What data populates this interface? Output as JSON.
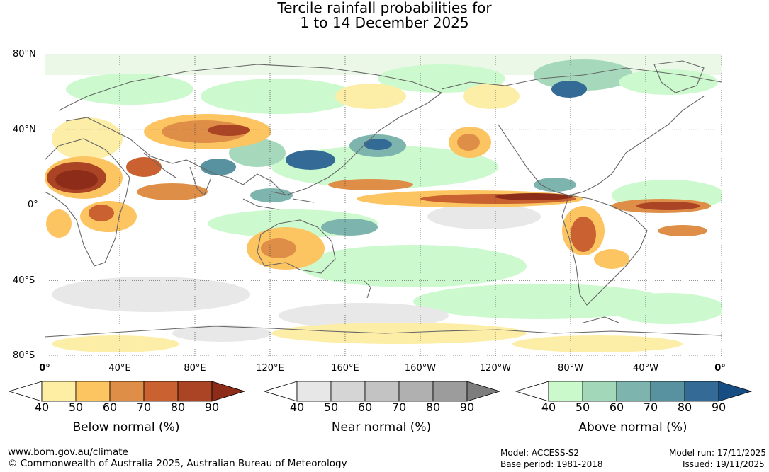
{
  "title": {
    "line1": "Tercile rainfall probabilities for",
    "line2": "1 to 14 December 2025"
  },
  "map": {
    "lat_labels": [
      "80°N",
      "40°N",
      "0°",
      "40°S",
      "80°S"
    ],
    "lon_labels": [
      "0°",
      "40°E",
      "80°E",
      "120°E",
      "160°E",
      "160°W",
      "120°W",
      "80°W",
      "40°W",
      "0°"
    ]
  },
  "legends": [
    {
      "name": "below-normal",
      "label": "Below normal (%)",
      "ticks": [
        "40",
        "50",
        "60",
        "70",
        "80",
        "90"
      ],
      "colors": [
        "#ffffff",
        "#fdeea3",
        "#fdc462",
        "#df8e47",
        "#c96230",
        "#ab4424",
        "#8d2d19"
      ]
    },
    {
      "name": "near-normal",
      "label": "Near normal (%)",
      "ticks": [
        "40",
        "50",
        "60",
        "70",
        "80",
        "90"
      ],
      "colors": [
        "#ffffff",
        "#e7e7e7",
        "#d5d5d5",
        "#c3c3c3",
        "#b0b0b0",
        "#9c9c9c",
        "#7d7d7d"
      ]
    },
    {
      "name": "above-normal",
      "label": "Above normal (%)",
      "ticks": [
        "40",
        "50",
        "60",
        "70",
        "80",
        "90"
      ],
      "colors": [
        "#ffffff",
        "#caf9cc",
        "#a2d7b9",
        "#7db5ae",
        "#58919f",
        "#346a96",
        "#164e84"
      ]
    }
  ],
  "footer": {
    "website": "www.bom.gov.au/climate",
    "copyright": "© Commonwealth of Australia 2025, Australian Bureau of Meteorology",
    "model": "Model: ACCESS-S2",
    "base_period": "Base period: 1981-2018",
    "model_run": "Model run: 17/11/2025",
    "issued": "Issued: 19/11/2025"
  }
}
